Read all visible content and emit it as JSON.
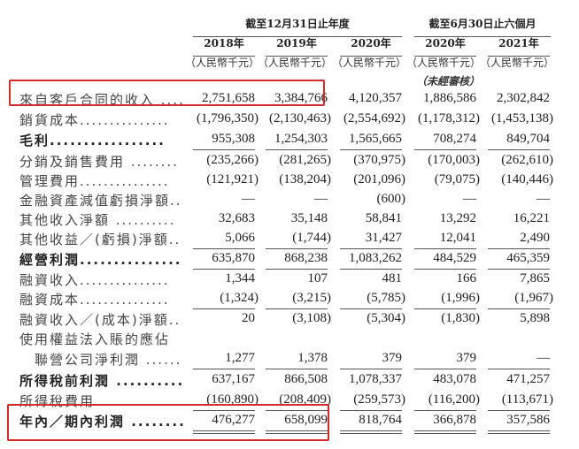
{
  "header": {
    "group_annual": "截至12月31日止年度",
    "group_half": "截至6月30日止六個月",
    "years": [
      "2018年",
      "2019年",
      "2020年",
      "2020年",
      "2021年"
    ],
    "unit": "（人民幣千元）",
    "unaudited": "（未經審核）"
  },
  "rows": [
    {
      "label": "來自客戶合同的收入 ....",
      "bold": false,
      "values": [
        "2,751,658",
        "3,384,766",
        "4,120,357",
        "1,886,586",
        "2,302,842"
      ]
    },
    {
      "label": "銷貨成本...............",
      "bold": false,
      "values": [
        "(1,796,350)",
        "(2,130,463)",
        "(2,554,692)",
        "(1,178,312)",
        "(1,453,138)"
      ]
    },
    {
      "label": "毛利.................",
      "bold": true,
      "values": [
        "955,308",
        "1,254,303",
        "1,565,665",
        "708,274",
        "849,704"
      ]
    },
    {
      "label": "分銷及銷售費用 ........",
      "bold": false,
      "values": [
        "(235,266)",
        "(281,265)",
        "(370,975)",
        "(170,003)",
        "(262,610)"
      ]
    },
    {
      "label": "管理費用...............",
      "bold": false,
      "values": [
        "(121,921)",
        "(138,204)",
        "(201,096)",
        "(79,075)",
        "(140,446)"
      ]
    },
    {
      "label": "金融資產減值虧損淨額..",
      "bold": false,
      "values": [
        "—",
        "—",
        "(600)",
        "—",
        "—"
      ]
    },
    {
      "label": "其他收入淨額 ..........",
      "bold": false,
      "values": [
        "32,683",
        "35,148",
        "58,841",
        "13,292",
        "16,221"
      ]
    },
    {
      "label": "其他收益／(虧損)淨額..",
      "bold": false,
      "values": [
        "5,066",
        "(1,744)",
        "31,427",
        "12,041",
        "2,490"
      ]
    },
    {
      "label": "經營利潤...............",
      "bold": true,
      "values": [
        "635,870",
        "868,238",
        "1,083,262",
        "484,529",
        "465,359"
      ]
    },
    {
      "label": "融資收入...............",
      "bold": false,
      "values": [
        "1,344",
        "107",
        "481",
        "166",
        "7,865"
      ]
    },
    {
      "label": "融資成本...............",
      "bold": false,
      "values": [
        "(1,324)",
        "(3,215)",
        "(5,785)",
        "(1,996)",
        "(1,967)"
      ]
    },
    {
      "label": "融資收入／(成本)淨額..",
      "bold": false,
      "values": [
        "20",
        "(3,108)",
        "(5,304)",
        "(1,830)",
        "5,898"
      ]
    },
    {
      "label": "使用權益法入賬的應佔",
      "bold": false,
      "values": [
        "",
        "",
        "",
        "",
        ""
      ]
    },
    {
      "label": "　聯營公司淨利潤 ......",
      "bold": false,
      "values": [
        "1,277",
        "1,378",
        "379",
        "379",
        "—"
      ]
    },
    {
      "label": "所得稅前利潤 ..........",
      "bold": true,
      "values": [
        "637,167",
        "866,508",
        "1,078,337",
        "483,078",
        "471,257"
      ]
    },
    {
      "label": "所得稅費用.............",
      "bold": false,
      "values": [
        "(160,890)",
        "(208,409)",
        "(259,573)",
        "(116,200)",
        "(113,671)"
      ]
    },
    {
      "label": "年內／期內利潤 ........",
      "bold": true,
      "values": [
        "476,277",
        "658,099",
        "818,764",
        "366,878",
        "357,586"
      ]
    }
  ],
  "highlight_color": "#d42a2a"
}
